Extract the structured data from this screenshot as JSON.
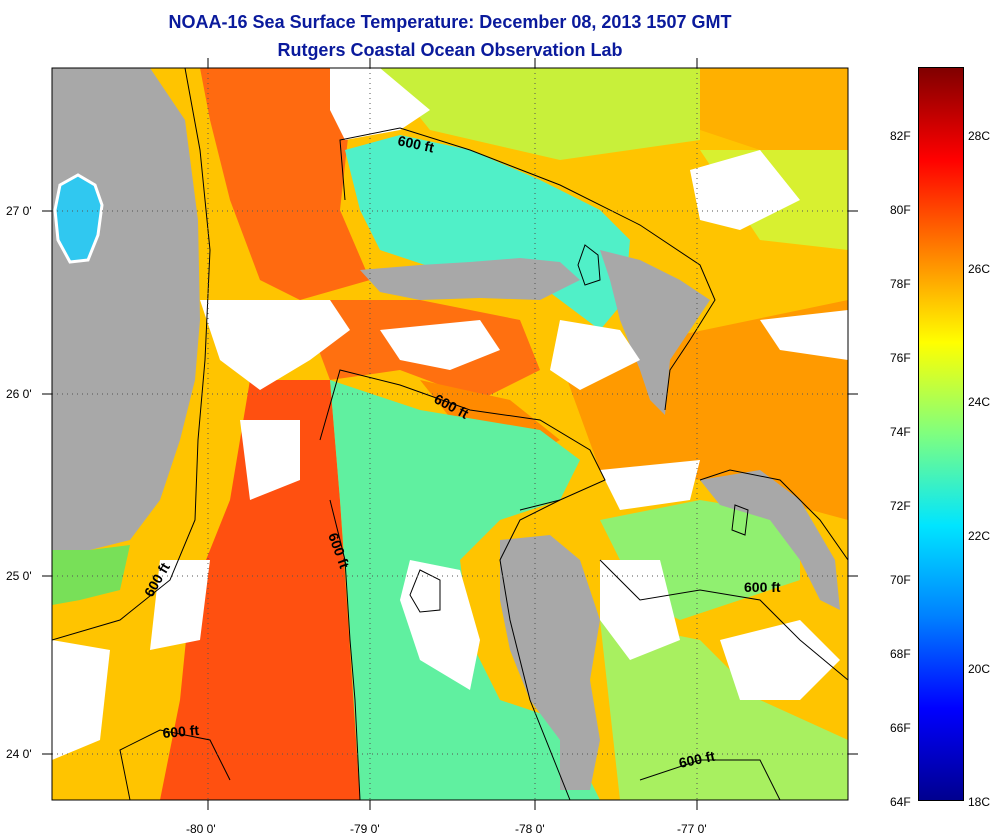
{
  "title": {
    "line1": "NOAA-16 Sea Surface Temperature:  December 08, 2013 1507 GMT",
    "line2": "Rutgers Coastal Ocean Observation Lab"
  },
  "axes": {
    "lat_labels": [
      "27 0'",
      "26 0'",
      "25 0'",
      "24 0'"
    ],
    "lon_labels": [
      "-80 0'",
      "-79 0'",
      "-78 0'",
      "-77 0'"
    ]
  },
  "contours": {
    "label": "600 ft"
  },
  "colorbar": {
    "fahrenheit_labels": [
      "82F",
      "80F",
      "78F",
      "76F",
      "74F",
      "72F",
      "70F",
      "68F",
      "66F",
      "64F"
    ],
    "celsius_labels": [
      "28C",
      "26C",
      "24C",
      "22C",
      "20C",
      "18C"
    ],
    "range_c": [
      18,
      29
    ],
    "colors": [
      "#00008f",
      "#0000ff",
      "#0080ff",
      "#00e5ff",
      "#7fff7f",
      "#ffff00",
      "#ff8000",
      "#ff0000",
      "#800000"
    ]
  },
  "legend_colors": {
    "land": "#a8a8a8",
    "no_data": "#ffffff",
    "title": "#0a1a9c"
  }
}
